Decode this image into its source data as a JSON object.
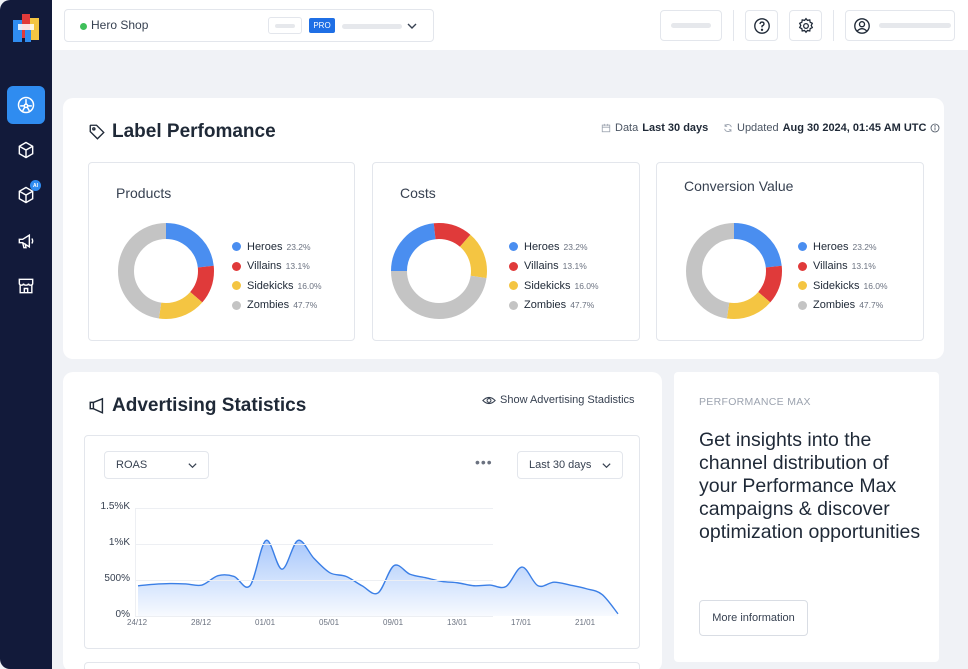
{
  "topbar": {
    "shop_name": "Hero Shop",
    "pro_badge": "PRO"
  },
  "label_performance": {
    "title": "Label Perfomance",
    "data_label": "Data",
    "data_range": "Last 30 days",
    "updated_label": "Updated",
    "updated_value": "Aug 30 2024, 01:45 AM UTC",
    "panels": [
      {
        "title": "Products",
        "segments": [
          {
            "name": "Heroes",
            "pct": "23.2%",
            "value": 23.2,
            "color": "#4a8ef0"
          },
          {
            "name": "Villains",
            "pct": "13.1%",
            "value": 13.1,
            "color": "#e03a3a"
          },
          {
            "name": "Sidekicks",
            "pct": "16.0%",
            "value": 16.0,
            "color": "#f4c542"
          },
          {
            "name": "Zombies",
            "pct": "47.7%",
            "value": 47.7,
            "color": "#c4c4c4"
          }
        ]
      },
      {
        "title": "Costs",
        "segments": [
          {
            "name": "Heroes",
            "pct": "23.2%",
            "value": 23.2,
            "color": "#4a8ef0"
          },
          {
            "name": "Villains",
            "pct": "13.1%",
            "value": 13.1,
            "color": "#e03a3a"
          },
          {
            "name": "Sidekicks",
            "pct": "16.0%",
            "value": 16.0,
            "color": "#f4c542"
          },
          {
            "name": "Zombies",
            "pct": "47.7%",
            "value": 47.7,
            "color": "#c4c4c4"
          }
        ]
      },
      {
        "title": "Conversion Value",
        "segments": [
          {
            "name": "Heroes",
            "pct": "23.2%",
            "value": 23.2,
            "color": "#4a8ef0"
          },
          {
            "name": "Villains",
            "pct": "13.1%",
            "value": 13.1,
            "color": "#e03a3a"
          },
          {
            "name": "Sidekicks",
            "pct": "16.0%",
            "value": 16.0,
            "color": "#f4c542"
          },
          {
            "name": "Zombies",
            "pct": "47.7%",
            "value": 47.7,
            "color": "#c4c4c4"
          }
        ]
      }
    ]
  },
  "advertising": {
    "title": "Advertising Statistics",
    "show_link": "Show Advertising Stadistics",
    "metric_select": "ROAS",
    "range_select": "Last 30 days"
  },
  "chart_data": {
    "type": "area",
    "title": "",
    "ylabel": "ROAS",
    "ylim": [
      0,
      1500
    ],
    "yticks": [
      {
        "value": 0,
        "label": "0%"
      },
      {
        "value": 500,
        "label": "500%"
      },
      {
        "value": 1000,
        "label": "1%K"
      },
      {
        "value": 1500,
        "label": "1.5%K"
      }
    ],
    "x_ticks": [
      {
        "index": 0,
        "label": "24/12"
      },
      {
        "index": 4,
        "label": "28/12"
      },
      {
        "index": 8,
        "label": "01/01"
      },
      {
        "index": 12,
        "label": "05/01"
      },
      {
        "index": 16,
        "label": "09/01"
      },
      {
        "index": 20,
        "label": "13/01"
      },
      {
        "index": 24,
        "label": "17/01"
      },
      {
        "index": 28,
        "label": "21/01"
      }
    ],
    "x_count": 31,
    "values": [
      420,
      440,
      450,
      445,
      430,
      560,
      550,
      420,
      1050,
      650,
      1050,
      800,
      600,
      550,
      420,
      320,
      700,
      580,
      530,
      480,
      460,
      420,
      430,
      410,
      680,
      420,
      470,
      430,
      380,
      300,
      30
    ]
  },
  "performance_max": {
    "label": "PERFORMANCE MAX",
    "text": "Get insights into the channel distribution of your Performance Max campaigns & discover optimization opportunities",
    "button": "More information"
  }
}
